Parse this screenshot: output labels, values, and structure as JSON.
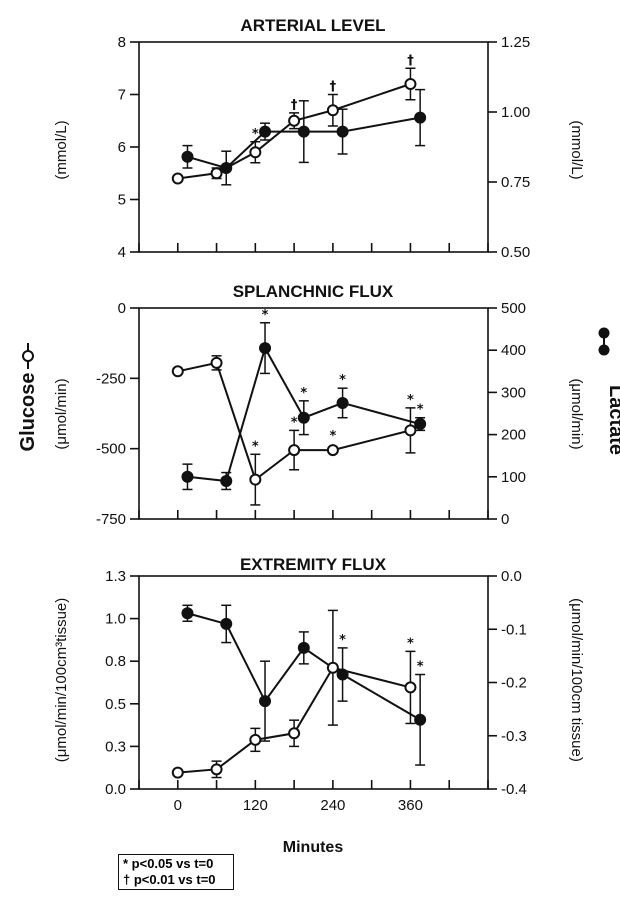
{
  "chart_data": [
    {
      "type": "line",
      "title": "ARTERIAL LEVEL",
      "ylabel_left": "(mmol/L)",
      "ylabel_right": "(mmol/L)",
      "xlim": [
        -60,
        480
      ],
      "ylim_left": [
        4,
        8
      ],
      "ylim_right": [
        0.5,
        1.25
      ],
      "yticks_left": [
        "4",
        "5",
        "6",
        "7",
        "8"
      ],
      "yticks_right": [
        "0.50",
        "0.75",
        "1.00",
        "1.25"
      ],
      "series": [
        {
          "axis": "left",
          "marker": "open",
          "x": [
            0,
            60,
            120,
            180,
            240,
            360
          ],
          "y": [
            5.4,
            5.5,
            5.9,
            6.5,
            6.7,
            7.2
          ],
          "err": [
            0,
            0.1,
            0.2,
            0.15,
            0.3,
            0.3
          ],
          "marks": [
            "",
            "",
            "*",
            "†",
            "†",
            "†"
          ]
        },
        {
          "axis": "right",
          "marker": "filled",
          "x": [
            15,
            75,
            135,
            195,
            255,
            375
          ],
          "y": [
            0.84,
            0.8,
            0.93,
            0.93,
            0.93,
            0.98
          ],
          "err": [
            0.04,
            0.06,
            0.03,
            0.11,
            0.08,
            0.1
          ],
          "marks": [
            "",
            "",
            "",
            "",
            "",
            ""
          ]
        }
      ]
    },
    {
      "type": "line",
      "title": "SPLANCHNIC FLUX",
      "ylabel_left": "(μmol/min)",
      "ylabel_right": "(μmol/min)",
      "xlim": [
        -60,
        480
      ],
      "ylim_left": [
        -750,
        0
      ],
      "ylim_right": [
        0,
        500
      ],
      "yticks_left": [
        "0",
        "-250",
        "-500",
        "-750"
      ],
      "yticks_right": [
        "0",
        "100",
        "200",
        "300",
        "400",
        "500"
      ],
      "series": [
        {
          "axis": "left",
          "marker": "open",
          "x": [
            0,
            60,
            120,
            180,
            240,
            360
          ],
          "y": [
            -225,
            -195,
            -610,
            -505,
            -505,
            -435
          ],
          "err": [
            0,
            25,
            90,
            70,
            0,
            80
          ],
          "marks": [
            "",
            "",
            "*",
            "*",
            "*",
            "*"
          ]
        },
        {
          "axis": "right",
          "marker": "filled",
          "x": [
            15,
            75,
            135,
            195,
            255,
            375
          ],
          "y": [
            100,
            90,
            405,
            240,
            275,
            225
          ],
          "err": [
            30,
            20,
            60,
            40,
            35,
            15
          ],
          "marks": [
            "",
            "",
            "*",
            "*",
            "*",
            "*"
          ]
        }
      ]
    },
    {
      "type": "line",
      "title": "EXTREMITY FLUX",
      "ylabel_left": "(μmol/min/100cm³tissue)",
      "ylabel_right": "(μmol/min/100cm  tissue)",
      "xlabel": "Minutes",
      "xlim": [
        -60,
        480
      ],
      "xticks": [
        "0",
        "120",
        "240",
        "360"
      ],
      "ylim_left": [
        0.0,
        1.3
      ],
      "ylim_right": [
        -0.4,
        0.0
      ],
      "yticks_left": [
        "0.0",
        "0.3",
        "0.5",
        "0.8",
        "1.0",
        "1.3"
      ],
      "yticks_right": [
        "-0.4",
        "-0.3",
        "-0.2",
        "-0.1",
        "0.0"
      ],
      "series": [
        {
          "axis": "left",
          "marker": "open",
          "x": [
            0,
            60,
            120,
            180,
            240,
            360
          ],
          "y": [
            0.1,
            0.12,
            0.3,
            0.34,
            0.74,
            0.62
          ],
          "err": [
            0,
            0.05,
            0.07,
            0.08,
            0.35,
            0.22
          ],
          "marks": [
            "",
            "",
            "",
            "",
            "",
            "*"
          ]
        },
        {
          "axis": "right",
          "marker": "filled",
          "x": [
            15,
            75,
            135,
            195,
            255,
            375
          ],
          "y": [
            -0.07,
            -0.09,
            -0.235,
            -0.135,
            -0.185,
            -0.27
          ],
          "err": [
            0.015,
            0.035,
            0.075,
            0.03,
            0.05,
            0.085
          ],
          "marks": [
            "",
            "",
            "",
            "",
            "*",
            "*"
          ]
        }
      ]
    }
  ],
  "side_labels": {
    "left": "Glucose",
    "right": "Lactate"
  },
  "legend": {
    "line1": "* p<0.05 vs t=0",
    "line2": "† p<0.01 vs t=0"
  }
}
